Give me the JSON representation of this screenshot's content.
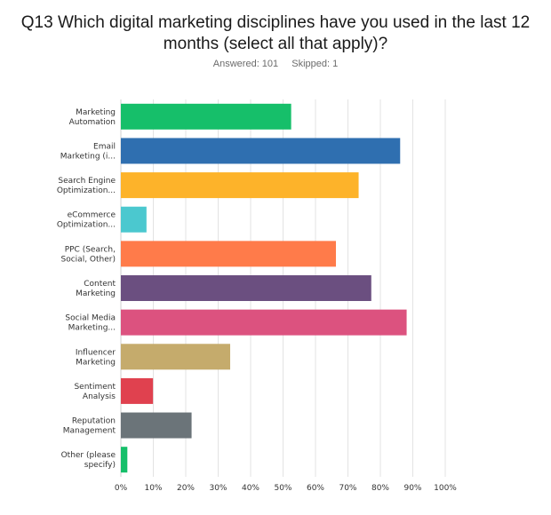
{
  "title_line1": "Q13 Which digital marketing disciplines have you used in the last 12",
  "title_line2": "months (select all that apply)?",
  "answered": "Answered: 101",
  "skipped": "Skipped: 1",
  "chart_data": {
    "type": "bar",
    "orientation": "horizontal",
    "title": "Q13 Which digital marketing disciplines have you used in the last 12 months (select all that apply)?",
    "categories": [
      [
        "Marketing",
        "Automation"
      ],
      [
        "Email",
        "Marketing (i..."
      ],
      [
        "Search Engine",
        "Optimization..."
      ],
      [
        "eCommerce",
        "Optimization..."
      ],
      [
        "PPC (Search,",
        "Social, Other)"
      ],
      [
        "Content",
        "Marketing"
      ],
      [
        "Social Media",
        "Marketing..."
      ],
      [
        "Influencer",
        "Marketing"
      ],
      [
        "Sentiment",
        "Analysis"
      ],
      [
        "Reputation",
        "Management"
      ],
      [
        "Other (please",
        "specify)"
      ]
    ],
    "values": [
      52.5,
      86.1,
      73.3,
      7.9,
      66.3,
      77.2,
      88.1,
      33.7,
      9.9,
      21.8,
      2.0
    ],
    "colors": [
      "#16bf6a",
      "#2f6fb0",
      "#fdb32a",
      "#4bc8cf",
      "#ff7b4a",
      "#6b4f80",
      "#dc527f",
      "#c5ab6c",
      "#e0414f",
      "#6b7479",
      "#16bf6a"
    ],
    "x_ticks": [
      "0%",
      "10%",
      "20%",
      "30%",
      "40%",
      "50%",
      "60%",
      "70%",
      "80%",
      "90%",
      "100%"
    ],
    "xlim": [
      0,
      100
    ],
    "grid": true,
    "xlabel": "",
    "ylabel": ""
  }
}
